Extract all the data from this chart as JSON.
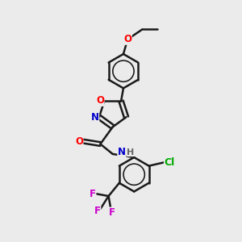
{
  "bg_color": "#ebebeb",
  "bond_color": "#1a1a1a",
  "bond_width": 1.8,
  "atom_colors": {
    "O": "#ff0000",
    "N": "#0000cc",
    "Cl": "#00aa00",
    "F": "#cc00cc",
    "C": "#1a1a1a",
    "H": "#666666"
  },
  "font_size": 8.5,
  "fig_size": [
    3.0,
    3.0
  ],
  "dpi": 100
}
